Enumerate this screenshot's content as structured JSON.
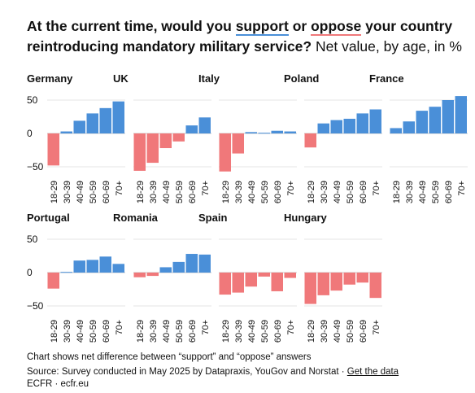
{
  "title": {
    "part1": "At the current time, would you ",
    "support": "support",
    "or": " or ",
    "oppose": "oppose",
    "part2": " your country reintroducing mandatory military service?",
    "subtitle": " Net value, by age, in %"
  },
  "colors": {
    "support": "#4a8fd8",
    "oppose": "#f0787a"
  },
  "chart_data": {
    "type": "bar",
    "categories": [
      "18-29",
      "30-39",
      "40-49",
      "50-59",
      "60-69",
      "70+"
    ],
    "y_ticks": [
      "50",
      "0",
      "−50"
    ],
    "ylim": [
      -60,
      60
    ],
    "grid": true,
    "panels": [
      {
        "name": "Germany",
        "values": [
          -48,
          3,
          19,
          30,
          38,
          48
        ]
      },
      {
        "name": "UK",
        "values": [
          -56,
          -44,
          -22,
          -12,
          12,
          24
        ]
      },
      {
        "name": "Italy",
        "values": [
          -57,
          -30,
          2,
          1,
          4,
          3
        ]
      },
      {
        "name": "Poland",
        "values": [
          -21,
          15,
          20,
          22,
          30,
          36
        ]
      },
      {
        "name": "France",
        "values": [
          8,
          18,
          34,
          40,
          50,
          56
        ]
      },
      {
        "name": "Portugal",
        "values": [
          -24,
          1,
          18,
          19,
          24,
          13
        ]
      },
      {
        "name": "Romania",
        "values": [
          -7,
          -5,
          8,
          16,
          28,
          27
        ]
      },
      {
        "name": "Spain",
        "values": [
          -33,
          -30,
          -21,
          -6,
          -28,
          -8
        ]
      },
      {
        "name": "Hungary",
        "values": [
          -47,
          -34,
          -27,
          -18,
          -15,
          -38
        ]
      }
    ]
  },
  "footer": {
    "note": "Chart shows net difference between “support” and “oppose” answers",
    "source_prefix": "Source: Survey conducted in May 2025 by Datapraxis, YouGov and Norstat · ",
    "get_data": "Get the data",
    "credit": "ECFR · ecfr.eu"
  }
}
